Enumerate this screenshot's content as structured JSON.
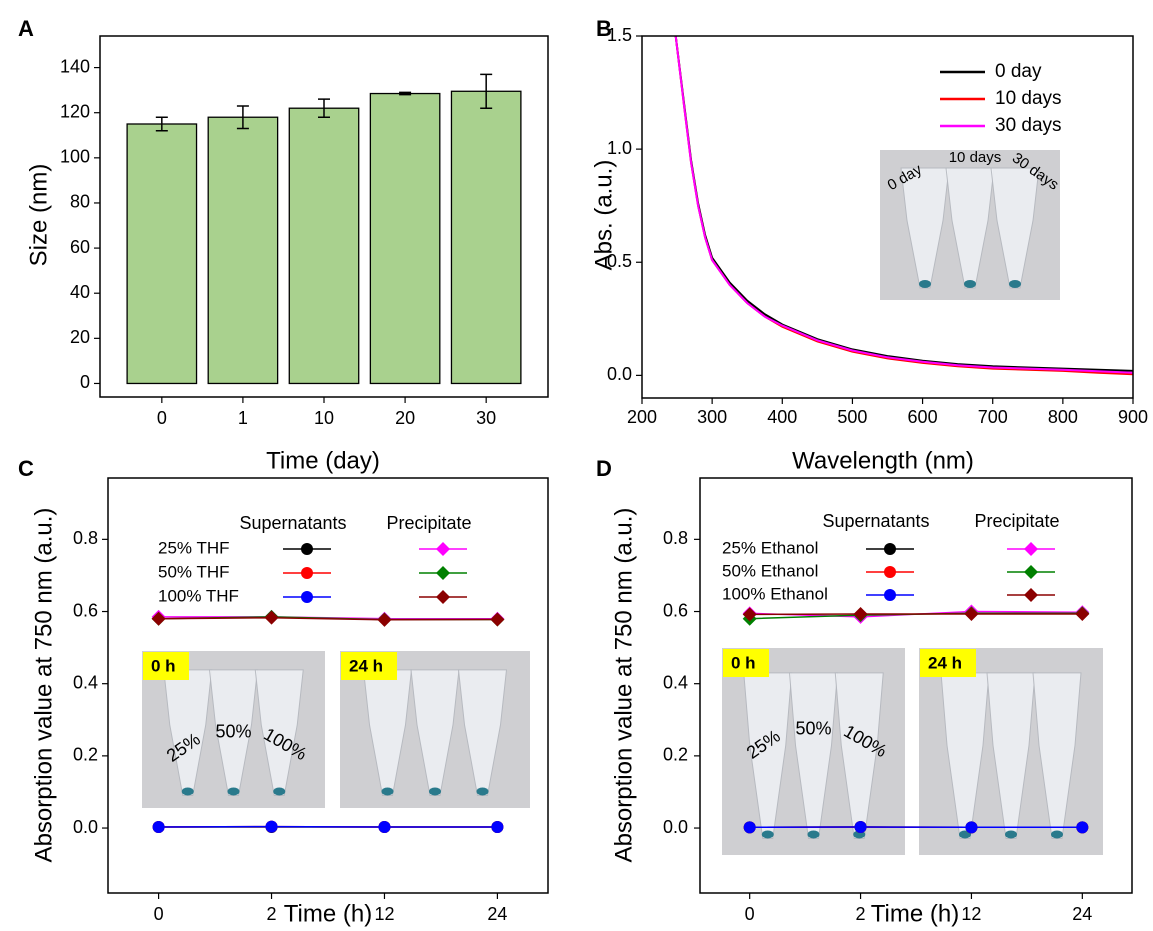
{
  "chart_data": [
    {
      "type": "bar",
      "panel_label": "A",
      "xlabel": "Time (day)",
      "ylabel": "Size (nm)",
      "categories": [
        "0",
        "1",
        "10",
        "20",
        "30"
      ],
      "values": [
        115,
        118,
        122,
        128.5,
        129.5
      ],
      "errors": [
        3,
        5,
        4,
        0.5,
        7.5
      ],
      "color": "#a9d18e",
      "ylim": [
        -6,
        154
      ],
      "yticks": [
        0,
        20,
        40,
        60,
        80,
        100,
        120,
        140
      ]
    },
    {
      "type": "line",
      "panel_label": "B",
      "xlabel": "Wavelength (nm)",
      "ylabel": "Abs. (a.u.)",
      "x": [
        248,
        260,
        270,
        280,
        290,
        300,
        325,
        350,
        375,
        400,
        450,
        500,
        550,
        600,
        650,
        700,
        750,
        800,
        850,
        900
      ],
      "series": [
        {
          "name": "0 day",
          "color": "#000000",
          "values": [
            1.5,
            1.2,
            0.95,
            0.76,
            0.62,
            0.52,
            0.41,
            0.33,
            0.27,
            0.225,
            0.16,
            0.115,
            0.085,
            0.065,
            0.05,
            0.04,
            0.035,
            0.03,
            0.025,
            0.02
          ]
        },
        {
          "name": "10 days",
          "color": "#ff0000",
          "values": [
            1.5,
            1.19,
            0.94,
            0.75,
            0.61,
            0.51,
            0.4,
            0.32,
            0.26,
            0.215,
            0.15,
            0.105,
            0.075,
            0.055,
            0.04,
            0.03,
            0.025,
            0.02,
            0.012,
            0.005
          ]
        },
        {
          "name": "30 days",
          "color": "#ff00ff",
          "values": [
            1.5,
            1.19,
            0.94,
            0.75,
            0.61,
            0.51,
            0.4,
            0.32,
            0.26,
            0.22,
            0.155,
            0.11,
            0.08,
            0.06,
            0.045,
            0.035,
            0.03,
            0.025,
            0.018,
            0.012
          ]
        }
      ],
      "xlim": [
        200,
        900
      ],
      "xticks": [
        200,
        300,
        400,
        500,
        600,
        700,
        800,
        900
      ],
      "ylim": [
        -0.1,
        1.5
      ],
      "yticks": [
        {
          "value": 0,
          "label": "0.0"
        },
        0.5,
        {
          "value": 1,
          "label": "1.0"
        },
        1.5
      ],
      "legend": "upper right",
      "annotations": [
        "0 day",
        "10 days",
        "30 days"
      ]
    },
    {
      "type": "line-markers",
      "panel_label": "C",
      "xlabel": "Time (h)",
      "ylabel": "Absorption value at 750 nm (a.u.)",
      "categories": [
        "0",
        "2",
        "12",
        "24"
      ],
      "series": [
        {
          "name": "25%  THF",
          "group": "Supernatants",
          "marker": "circle",
          "color": "#000000",
          "values": [
            0.003,
            0.003,
            0.003,
            0.003
          ]
        },
        {
          "name": "50%  THF",
          "group": "Supernatants",
          "marker": "circle",
          "color": "#ff0000",
          "values": [
            0.003,
            0.004,
            0.003,
            0.003
          ]
        },
        {
          "name": "100% THF",
          "group": "Supernatants",
          "marker": "circle",
          "color": "#0000ff",
          "values": [
            0.003,
            0.004,
            0.003,
            0.003
          ]
        },
        {
          "name": "25%  THF",
          "group": "Precipitate",
          "marker": "diamond",
          "color": "#ff00ff",
          "values": [
            0.585,
            0.585,
            0.58,
            0.58
          ]
        },
        {
          "name": "50%  THF",
          "group": "Precipitate",
          "marker": "diamond",
          "color": "#008000",
          "values": [
            0.58,
            0.585,
            0.578,
            0.578
          ]
        },
        {
          "name": "100% THF",
          "group": "Precipitate",
          "marker": "diamond",
          "color": "#8b0000",
          "values": [
            0.58,
            0.583,
            0.577,
            0.578
          ]
        }
      ],
      "ylim": [
        -0.18,
        0.97
      ],
      "yticks": [
        {
          "value": 0,
          "label": "0.0"
        },
        0.2,
        0.4,
        0.6,
        0.8
      ],
      "annotations": [
        "0 h",
        "24 h",
        "25%",
        "50%",
        "100%"
      ]
    },
    {
      "type": "line-markers",
      "panel_label": "D",
      "xlabel": "Time (h)",
      "ylabel": "Absorption value at 750 nm (a.u.)",
      "categories": [
        "0",
        "2",
        "12",
        "24"
      ],
      "series": [
        {
          "name": "25%  Ethanol",
          "group": "Supernatants",
          "marker": "circle",
          "color": "#000000",
          "values": [
            0.002,
            0.003,
            0.002,
            0.002
          ]
        },
        {
          "name": "50%  Ethanol",
          "group": "Supernatants",
          "marker": "circle",
          "color": "#ff0000",
          "values": [
            0.002,
            0.003,
            0.002,
            0.002
          ]
        },
        {
          "name": "100% Ethanol",
          "group": "Supernatants",
          "marker": "circle",
          "color": "#0000ff",
          "values": [
            0.002,
            0.003,
            0.002,
            0.002
          ]
        },
        {
          "name": "25%  Ethanol",
          "group": "Precipitate",
          "marker": "diamond",
          "color": "#ff00ff",
          "values": [
            0.595,
            0.585,
            0.6,
            0.598
          ]
        },
        {
          "name": "50%  Ethanol",
          "group": "Precipitate",
          "marker": "diamond",
          "color": "#008000",
          "values": [
            0.58,
            0.59,
            0.595,
            0.595
          ]
        },
        {
          "name": "100% Ethanol",
          "group": "Precipitate",
          "marker": "diamond",
          "color": "#8b0000",
          "values": [
            0.592,
            0.593,
            0.593,
            0.593
          ]
        }
      ],
      "ylim": [
        -0.18,
        0.97
      ],
      "yticks": [
        {
          "value": 0,
          "label": "0.0"
        },
        0.2,
        0.4,
        0.6,
        0.8
      ],
      "annotations": [
        "0 h",
        "24 h",
        "25%",
        "50%",
        "100%"
      ]
    }
  ]
}
